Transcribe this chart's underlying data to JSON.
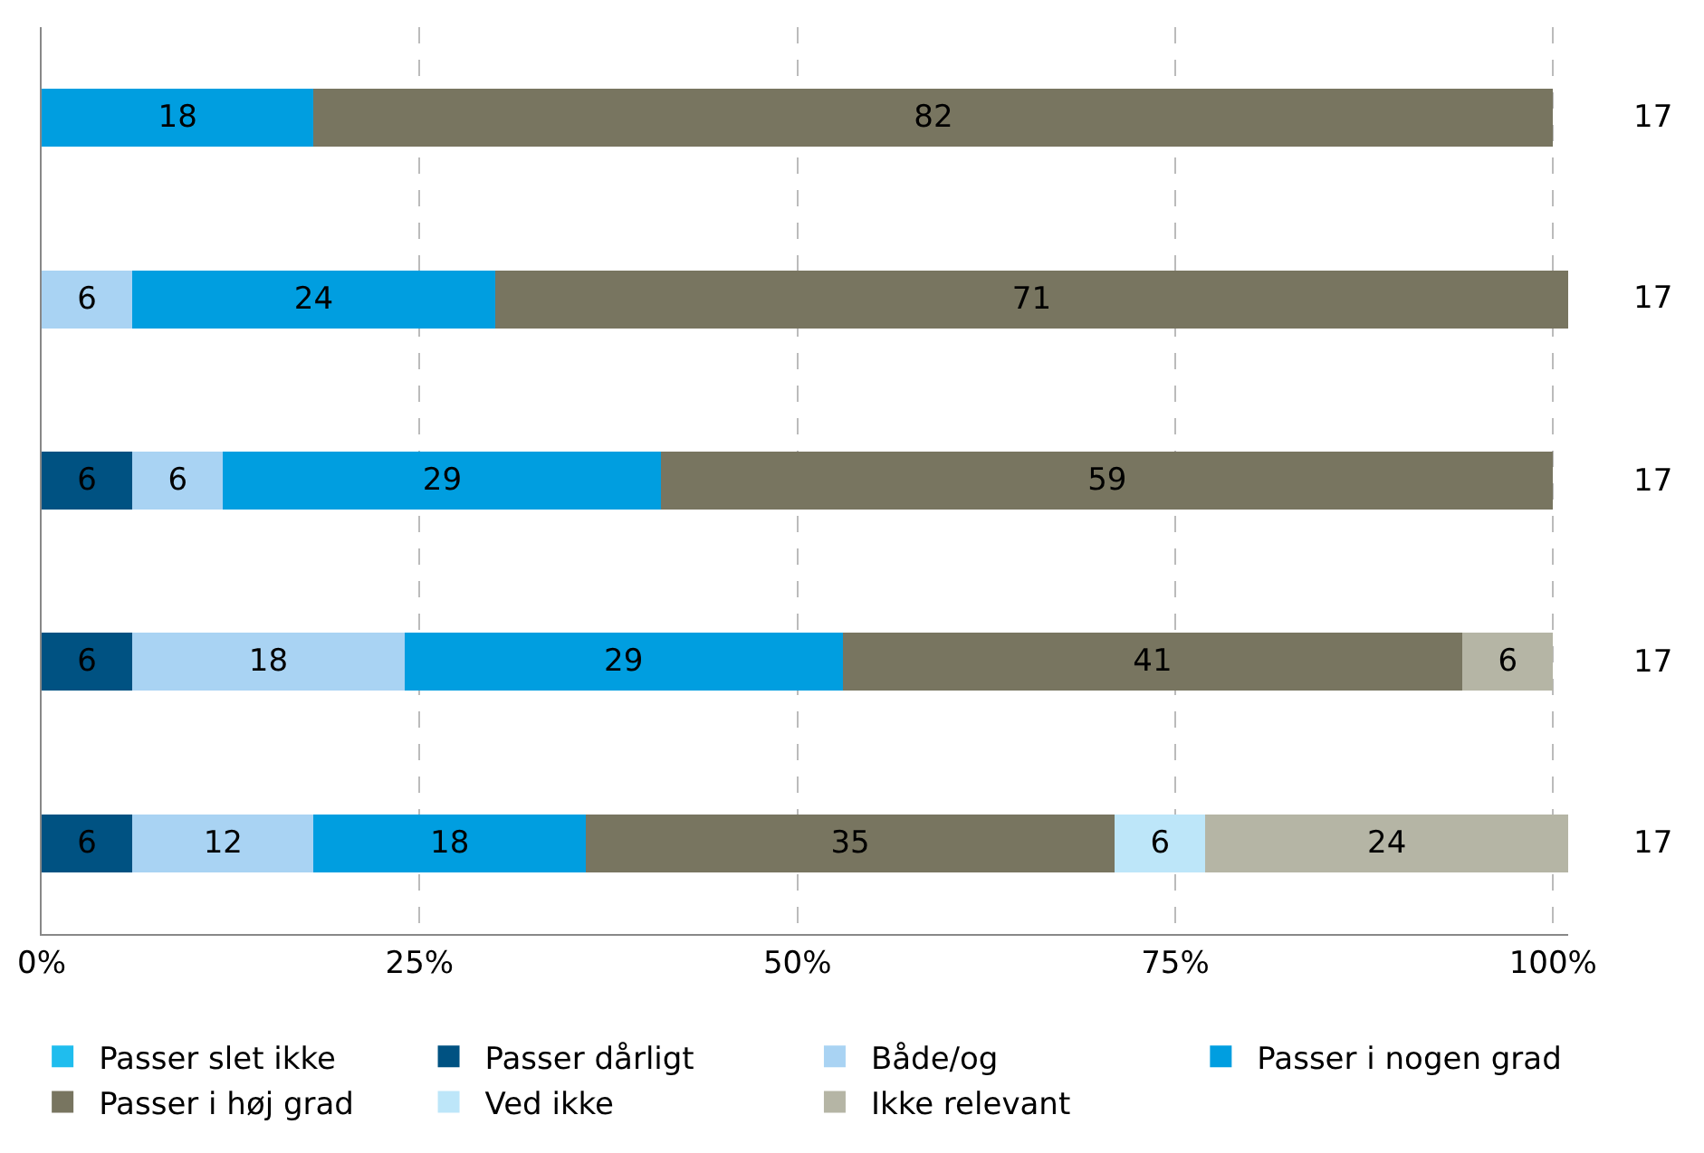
{
  "chart_data": {
    "type": "bar",
    "orientation": "horizontal",
    "stacked": true,
    "categories": [
      null,
      null,
      null,
      null,
      null
    ],
    "series": [
      {
        "name": "Passer slet ikke",
        "color": "#1fbdee",
        "values": [
          null,
          null,
          null,
          null,
          null
        ]
      },
      {
        "name": "Passer dårligt",
        "color": "#005282",
        "values": [
          null,
          null,
          6,
          6,
          6
        ]
      },
      {
        "name": "Både/og",
        "color": "#a9d3f3",
        "values": [
          null,
          6,
          6,
          18,
          12
        ]
      },
      {
        "name": "Passer i nogen grad",
        "color": "#009ee0",
        "values": [
          18,
          24,
          29,
          29,
          18
        ]
      },
      {
        "name": "Passer i høj grad",
        "color": "#787560",
        "values": [
          82,
          71,
          59,
          41,
          35
        ]
      },
      {
        "name": "Ved ikke",
        "color": "#bde6f9",
        "values": [
          null,
          null,
          null,
          null,
          6
        ]
      },
      {
        "name": "Ikke relevant",
        "color": "#b5b5a5",
        "values": [
          null,
          null,
          null,
          6,
          24
        ]
      }
    ],
    "xlim": [
      0,
      101
    ],
    "xticks": [
      {
        "value": 0,
        "label": "0%"
      },
      {
        "value": 25,
        "label": "25%"
      },
      {
        "value": 50,
        "label": "50%"
      },
      {
        "value": 75,
        "label": "75%"
      },
      {
        "value": 100,
        "label": "100%"
      }
    ],
    "annotations": [
      "17",
      "17",
      "17",
      "17",
      "17"
    ],
    "data_labels": true,
    "grid": "x",
    "legend": "bottom"
  }
}
